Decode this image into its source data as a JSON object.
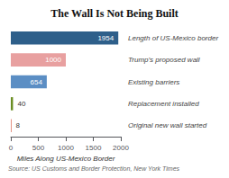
{
  "chart_data": {
    "type": "bar",
    "orientation": "horizontal",
    "title": "The Wall Is Not Being Built",
    "categories": [
      "Length of US-Mexico border",
      "Trump's proposed wall",
      "Existing barriers",
      "Replacement installed",
      "Original new wall started"
    ],
    "values": [
      1954,
      1000,
      654,
      40,
      8
    ],
    "colors": [
      "#2e5f8a",
      "#e8a0a0",
      "#5b8ec4",
      "#6b8e23",
      "#cc2200"
    ],
    "data_labels": true,
    "xlim": [
      0,
      2000
    ],
    "xticks": [
      0,
      500,
      1000,
      1500,
      2000
    ],
    "xlabel": "Miles Along US-Mexico Border",
    "grid": false,
    "annotations": [
      "Source: US Customs and Border Protection, New York Times"
    ]
  }
}
